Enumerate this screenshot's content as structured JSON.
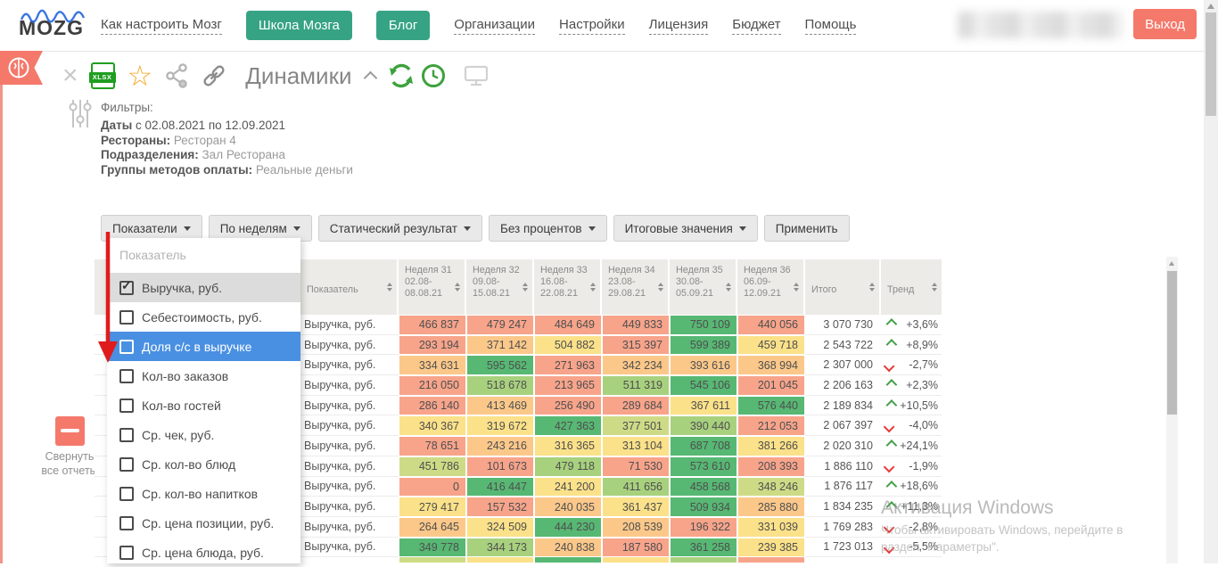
{
  "nav": {
    "logo_text": "MOZG",
    "links": [
      {
        "label": "Как настроить Мозг",
        "type": "link"
      },
      {
        "label": "Школа Мозга",
        "type": "button"
      },
      {
        "label": "Блог",
        "type": "button"
      },
      {
        "label": "Организации",
        "type": "link"
      },
      {
        "label": "Настройки",
        "type": "link"
      },
      {
        "label": "Лицензия",
        "type": "link"
      },
      {
        "label": "Бюджет",
        "type": "link"
      },
      {
        "label": "Помощь",
        "type": "link"
      }
    ],
    "logout_label": "Выход"
  },
  "toolbar": {
    "title": "Динамики",
    "xlsx_label": "XLSX",
    "icons": [
      "close-icon",
      "export-xlsx-icon",
      "favorite-star-icon",
      "share-icon",
      "link-icon",
      "collapse-chevron-icon",
      "refresh-icon",
      "schedule-clock-icon",
      "monitor-icon"
    ]
  },
  "filters": {
    "title": "Фильтры:",
    "lines": [
      {
        "label": "Даты",
        "value": " с 02.08.2021 по 12.09.2021",
        "dark": true
      },
      {
        "label": "Рестораны:",
        "value": " Ресторан 4",
        "dark": false
      },
      {
        "label": "Подразделения:",
        "value": " Зал Ресторана",
        "dark": false
      },
      {
        "label": "Группы методов оплаты:",
        "value": " Реальные деньги",
        "dark": false
      }
    ]
  },
  "controls": {
    "buttons": [
      {
        "label": "Показатели",
        "caret": true,
        "open": true
      },
      {
        "label": "По неделям",
        "caret": true,
        "open": false
      },
      {
        "label": "Статический результат",
        "caret": true,
        "open": false
      },
      {
        "label": "Без процентов",
        "caret": true,
        "open": false
      },
      {
        "label": "Итоговые значения",
        "caret": true,
        "open": false
      },
      {
        "label": "Применить",
        "caret": false,
        "open": false
      }
    ]
  },
  "dropdown": {
    "placeholder": "Показатель",
    "items": [
      {
        "label": "Выручка, руб.",
        "checked": true,
        "state": "selected"
      },
      {
        "label": "Себестоимость, руб.",
        "checked": false,
        "state": "normal"
      },
      {
        "label": "Доля с/с в выручке",
        "checked": false,
        "state": "highlighted"
      },
      {
        "label": "Кол-во заказов",
        "checked": false,
        "state": "normal"
      },
      {
        "label": "Кол-во гостей",
        "checked": false,
        "state": "normal"
      },
      {
        "label": "Ср. чек, руб.",
        "checked": false,
        "state": "normal"
      },
      {
        "label": "Ср. кол-во блюд",
        "checked": false,
        "state": "normal"
      },
      {
        "label": "Ср. кол-во напитков",
        "checked": false,
        "state": "normal"
      },
      {
        "label": "Ср. цена позиции, руб.",
        "checked": false,
        "state": "normal"
      },
      {
        "label": "Ср. цена блюда, руб.",
        "checked": false,
        "state": "normal"
      }
    ]
  },
  "table": {
    "heatmap_colors": {
      "G": "#57b873",
      "LG": "#a8d17e",
      "YG": "#cedb86",
      "Y": "#fbe189",
      "O": "#fbc88a",
      "S": "#f7a48b"
    },
    "columns": [
      {
        "id": "indicator",
        "label": "Показатель",
        "sub": []
      },
      {
        "id": "w31",
        "label": "Неделя 31",
        "sub": [
          "02.08-",
          "08.08.21"
        ]
      },
      {
        "id": "w32",
        "label": "Неделя 32",
        "sub": [
          "09.08-",
          "15.08.21"
        ]
      },
      {
        "id": "w33",
        "label": "Неделя 33",
        "sub": [
          "16.08-",
          "22.08.21"
        ]
      },
      {
        "id": "w34",
        "label": "Неделя 34",
        "sub": [
          "23.08-",
          "29.08.21"
        ]
      },
      {
        "id": "w35",
        "label": "Неделя 35",
        "sub": [
          "30.08-",
          "05.09.21"
        ]
      },
      {
        "id": "w36",
        "label": "Неделя 36",
        "sub": [
          "06.09-",
          "12.09.21"
        ]
      },
      {
        "id": "total",
        "label": "Итого",
        "sub": []
      },
      {
        "id": "trend",
        "label": "Тренд",
        "sub": []
      }
    ],
    "rows": [
      {
        "label": "Выручка, руб.",
        "cells": [
          {
            "v": "466 837",
            "c": "S"
          },
          {
            "v": "479 247",
            "c": "S"
          },
          {
            "v": "484 649",
            "c": "S"
          },
          {
            "v": "449 833",
            "c": "S"
          },
          {
            "v": "750 109",
            "c": "G"
          },
          {
            "v": "440 056",
            "c": "S"
          }
        ],
        "total": "3 070 730",
        "trend": {
          "dir": "up",
          "v": "+3,6%"
        }
      },
      {
        "label": "Выручка, руб.",
        "cells": [
          {
            "v": "293 194",
            "c": "S"
          },
          {
            "v": "371 142",
            "c": "O"
          },
          {
            "v": "504 882",
            "c": "Y"
          },
          {
            "v": "315 397",
            "c": "S"
          },
          {
            "v": "599 389",
            "c": "G"
          },
          {
            "v": "459 718",
            "c": "Y"
          }
        ],
        "total": "2 543 722",
        "trend": {
          "dir": "up",
          "v": "+8,9%"
        }
      },
      {
        "label": "Выручка, руб.",
        "cells": [
          {
            "v": "334 631",
            "c": "O"
          },
          {
            "v": "595 562",
            "c": "G"
          },
          {
            "v": "271 963",
            "c": "S"
          },
          {
            "v": "342 234",
            "c": "O"
          },
          {
            "v": "393 616",
            "c": "O"
          },
          {
            "v": "368 994",
            "c": "O"
          }
        ],
        "total": "2 307 000",
        "trend": {
          "dir": "down",
          "v": "-2,7%"
        }
      },
      {
        "label": "Выручка, руб.",
        "cells": [
          {
            "v": "216 050",
            "c": "S"
          },
          {
            "v": "518 678",
            "c": "LG"
          },
          {
            "v": "213 965",
            "c": "S"
          },
          {
            "v": "511 319",
            "c": "LG"
          },
          {
            "v": "545 106",
            "c": "G"
          },
          {
            "v": "201 045",
            "c": "S"
          }
        ],
        "total": "2 206 163",
        "trend": {
          "dir": "up",
          "v": "+2,3%"
        }
      },
      {
        "label": "Выручка, руб.",
        "cells": [
          {
            "v": "286 140",
            "c": "S"
          },
          {
            "v": "413 469",
            "c": "O"
          },
          {
            "v": "256 490",
            "c": "S"
          },
          {
            "v": "289 684",
            "c": "S"
          },
          {
            "v": "367 611",
            "c": "Y"
          },
          {
            "v": "576 440",
            "c": "G"
          }
        ],
        "total": "2 189 834",
        "trend": {
          "dir": "up",
          "v": "+10,5%"
        }
      },
      {
        "label": "Выручка, руб.",
        "cells": [
          {
            "v": "340 367",
            "c": "Y"
          },
          {
            "v": "319 672",
            "c": "Y"
          },
          {
            "v": "427 363",
            "c": "G"
          },
          {
            "v": "377 501",
            "c": "YG"
          },
          {
            "v": "390 440",
            "c": "LG"
          },
          {
            "v": "212 053",
            "c": "S"
          }
        ],
        "total": "2 067 397",
        "trend": {
          "dir": "down",
          "v": "-4,0%"
        }
      },
      {
        "label": "Выручка, руб.",
        "cells": [
          {
            "v": "78 651",
            "c": "S"
          },
          {
            "v": "243 216",
            "c": "O"
          },
          {
            "v": "316 365",
            "c": "Y"
          },
          {
            "v": "313 104",
            "c": "Y"
          },
          {
            "v": "687 708",
            "c": "G"
          },
          {
            "v": "381 266",
            "c": "Y"
          }
        ],
        "total": "2 020 310",
        "trend": {
          "dir": "up",
          "v": "+24,1%"
        }
      },
      {
        "label": "Выручка, руб.",
        "cells": [
          {
            "v": "451 786",
            "c": "YG"
          },
          {
            "v": "101 673",
            "c": "S"
          },
          {
            "v": "479 118",
            "c": "LG"
          },
          {
            "v": "71 530",
            "c": "S"
          },
          {
            "v": "573 610",
            "c": "G"
          },
          {
            "v": "208 393",
            "c": "S"
          }
        ],
        "total": "1 886 110",
        "trend": {
          "dir": "down",
          "v": "-1,9%"
        }
      },
      {
        "label": "Выручка, руб.",
        "cells": [
          {
            "v": "0",
            "c": "S"
          },
          {
            "v": "416 447",
            "c": "G"
          },
          {
            "v": "241 200",
            "c": "Y"
          },
          {
            "v": "411 656",
            "c": "LG"
          },
          {
            "v": "458 568",
            "c": "G"
          },
          {
            "v": "348 246",
            "c": "YG"
          }
        ],
        "total": "1 876 117",
        "trend": {
          "dir": "up",
          "v": "+18,6%"
        }
      },
      {
        "label": "Выручка, руб.",
        "cells": [
          {
            "v": "279 417",
            "c": "Y"
          },
          {
            "v": "157 532",
            "c": "S"
          },
          {
            "v": "240 035",
            "c": "O"
          },
          {
            "v": "361 437",
            "c": "Y"
          },
          {
            "v": "509 934",
            "c": "G"
          },
          {
            "v": "285 880",
            "c": "O"
          }
        ],
        "total": "1 834 235",
        "trend": {
          "dir": "up",
          "v": "+11,3%"
        }
      },
      {
        "label": "Выручка, руб.",
        "cells": [
          {
            "v": "264 645",
            "c": "O"
          },
          {
            "v": "324 509",
            "c": "Y"
          },
          {
            "v": "444 230",
            "c": "G"
          },
          {
            "v": "208 539",
            "c": "O"
          },
          {
            "v": "196 322",
            "c": "S"
          },
          {
            "v": "331 039",
            "c": "Y"
          }
        ],
        "total": "1 769 283",
        "trend": {
          "dir": "down",
          "v": "-2,8%"
        }
      },
      {
        "label": "Выручка, руб.",
        "cells": [
          {
            "v": "349 778",
            "c": "G"
          },
          {
            "v": "344 173",
            "c": "LG"
          },
          {
            "v": "240 838",
            "c": "O"
          },
          {
            "v": "187 580",
            "c": "S"
          },
          {
            "v": "361 258",
            "c": "G"
          },
          {
            "v": "239 385",
            "c": "Y"
          }
        ],
        "total": "1 723 013",
        "trend": {
          "dir": "down",
          "v": "-5,5%"
        }
      }
    ],
    "partial_row": [
      "YG",
      "Y",
      "G",
      "Y",
      "LG",
      "S"
    ]
  },
  "watermark": {
    "line1": "Активация Windows",
    "line2": "Чтобы активировать Windows, перейдите в",
    "line3": "раздел \"Параметры\"."
  },
  "sidebar": {
    "collapse_line1": "Свернуть",
    "collapse_line2": "все отчеты"
  },
  "colors": {
    "salmon": "#f4796b",
    "nav_green": "#36a384",
    "highlight_blue": "#4a90e2",
    "logo_blue": "#2f6fe0",
    "trend_up": "#43a047",
    "trend_down": "#e53935",
    "annotation_red": "#e01b1b"
  }
}
